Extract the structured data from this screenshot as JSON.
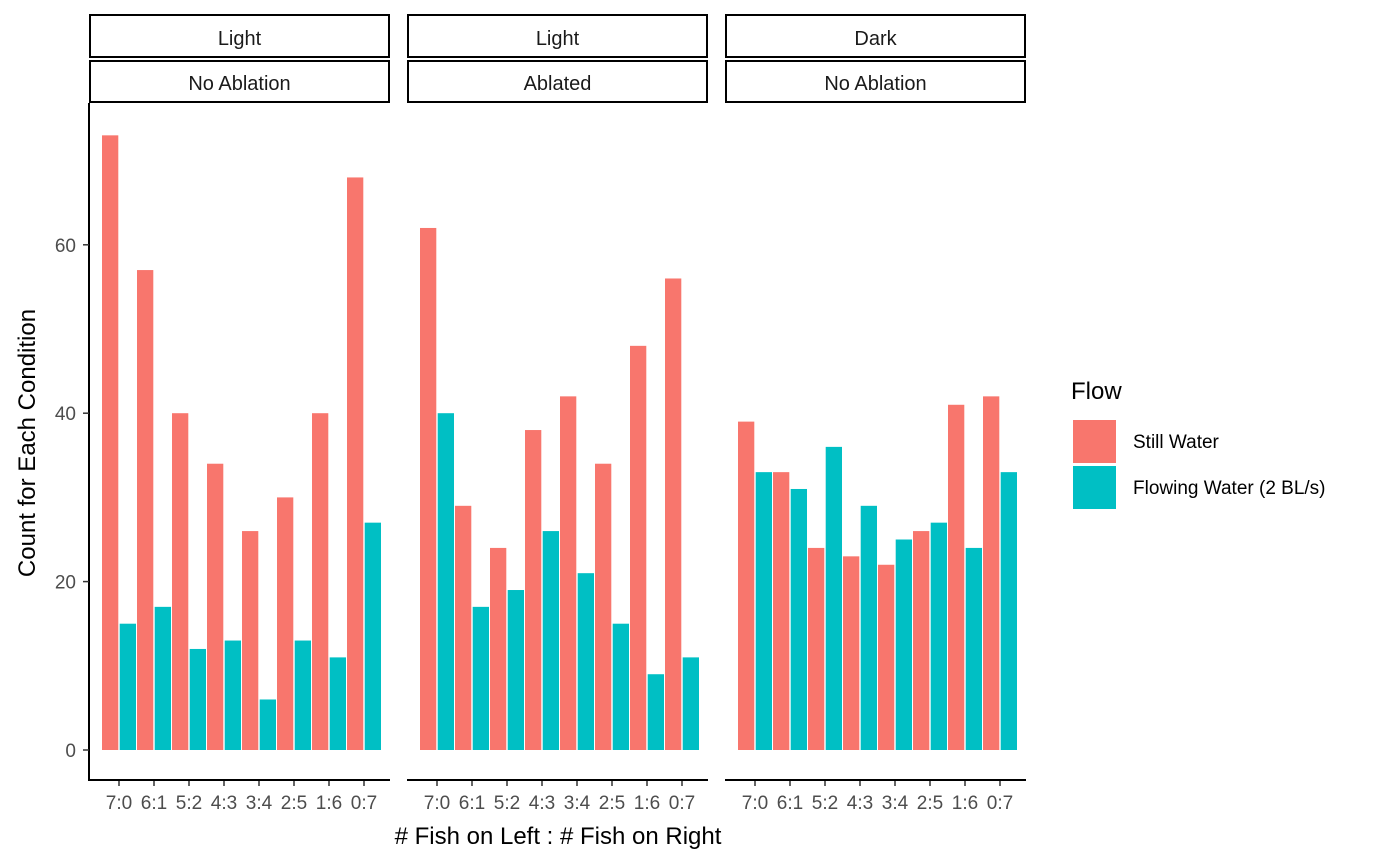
{
  "chart_data": {
    "type": "bar",
    "xlabel": "# Fish on Left : # Fish on Right",
    "ylabel": "Count for Each Condition",
    "ylim": [
      0,
      77
    ],
    "yticks": [
      0,
      20,
      40,
      60
    ],
    "categories": [
      "7:0",
      "6:1",
      "5:2",
      "4:3",
      "3:4",
      "2:5",
      "1:6",
      "0:7"
    ],
    "legend": {
      "title": "Flow",
      "position": "right",
      "entries": [
        {
          "name": "Still Water",
          "color": "#F8766D"
        },
        {
          "name": "Flowing Water (2 BL/s)",
          "color": "#00BFC4"
        }
      ]
    },
    "panels": [
      {
        "strip_top": "Light",
        "strip_bottom": "No Ablation",
        "series": [
          {
            "name": "Still Water",
            "color": "#F8766D",
            "values": [
              73,
              57,
              40,
              34,
              26,
              30,
              40,
              68
            ]
          },
          {
            "name": "Flowing Water (2 BL/s)",
            "color": "#00BFC4",
            "values": [
              15,
              17,
              12,
              13,
              6,
              13,
              11,
              27
            ]
          }
        ]
      },
      {
        "strip_top": "Light",
        "strip_bottom": "Ablated",
        "series": [
          {
            "name": "Still Water",
            "color": "#F8766D",
            "values": [
              62,
              29,
              24,
              38,
              42,
              34,
              48,
              56
            ]
          },
          {
            "name": "Flowing Water (2 BL/s)",
            "color": "#00BFC4",
            "values": [
              40,
              17,
              19,
              26,
              21,
              15,
              9,
              11
            ]
          }
        ]
      },
      {
        "strip_top": "Dark",
        "strip_bottom": "No Ablation",
        "series": [
          {
            "name": "Still Water",
            "color": "#F8766D",
            "values": [
              39,
              33,
              24,
              23,
              22,
              26,
              41,
              42
            ]
          },
          {
            "name": "Flowing Water (2 BL/s)",
            "color": "#00BFC4",
            "values": [
              33,
              31,
              36,
              29,
              25,
              27,
              24,
              33
            ]
          }
        ]
      }
    ]
  }
}
